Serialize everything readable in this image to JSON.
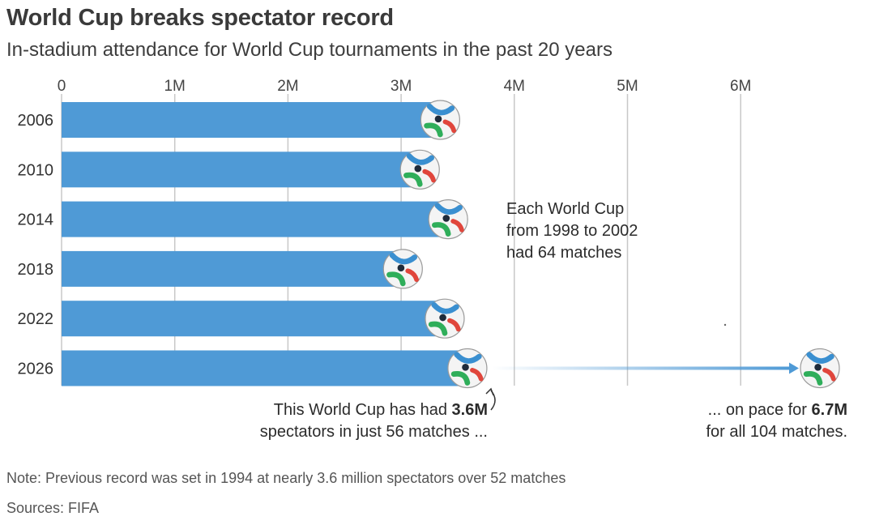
{
  "header": {
    "title": "World Cup breaks spectator record",
    "subtitle": "In-stadium attendance for World Cup tournaments in the past 20 years"
  },
  "footer": {
    "note": "Note: Previous record was set in 1994 at nearly 3.6 million spectators over 52 matches",
    "source": "Sources: FIFA"
  },
  "annotations": {
    "matches_note": [
      "Each World Cup",
      "from 1998 to 2002",
      "had 64 matches"
    ],
    "current_line1_prefix": "This World Cup has had ",
    "current_line1_bold": "3.6M",
    "current_line2": "spectators in just 56 matches ...",
    "projected_line1_prefix": "... on pace for ",
    "projected_line1_bold": "6.7M",
    "projected_line2": "for all 104 matches."
  },
  "colors": {
    "bar": "#4f9ad6",
    "grid": "#c8c8c8",
    "arrow": "#4f9ad6",
    "text": "#2b2b2b"
  },
  "icons": [
    "soccer-ball-icon"
  ],
  "chart_data": {
    "type": "bar",
    "orientation": "horizontal",
    "categories": [
      "2006",
      "2010",
      "2014",
      "2018",
      "2022",
      "2026"
    ],
    "values": [
      3.36,
      3.18,
      3.43,
      3.03,
      3.4,
      3.6
    ],
    "projected": {
      "category": "2026",
      "value": 6.7
    },
    "xlim": [
      0,
      6.75
    ],
    "xticks": [
      0,
      1,
      2,
      3,
      4,
      5,
      6
    ],
    "xtick_labels": [
      "0",
      "1M",
      "2M",
      "3M",
      "4M",
      "5M",
      "6M"
    ],
    "grid": true,
    "title": "World Cup breaks spectator record",
    "subtitle": "In-stadium attendance for World Cup tournaments in the past 20 years"
  }
}
